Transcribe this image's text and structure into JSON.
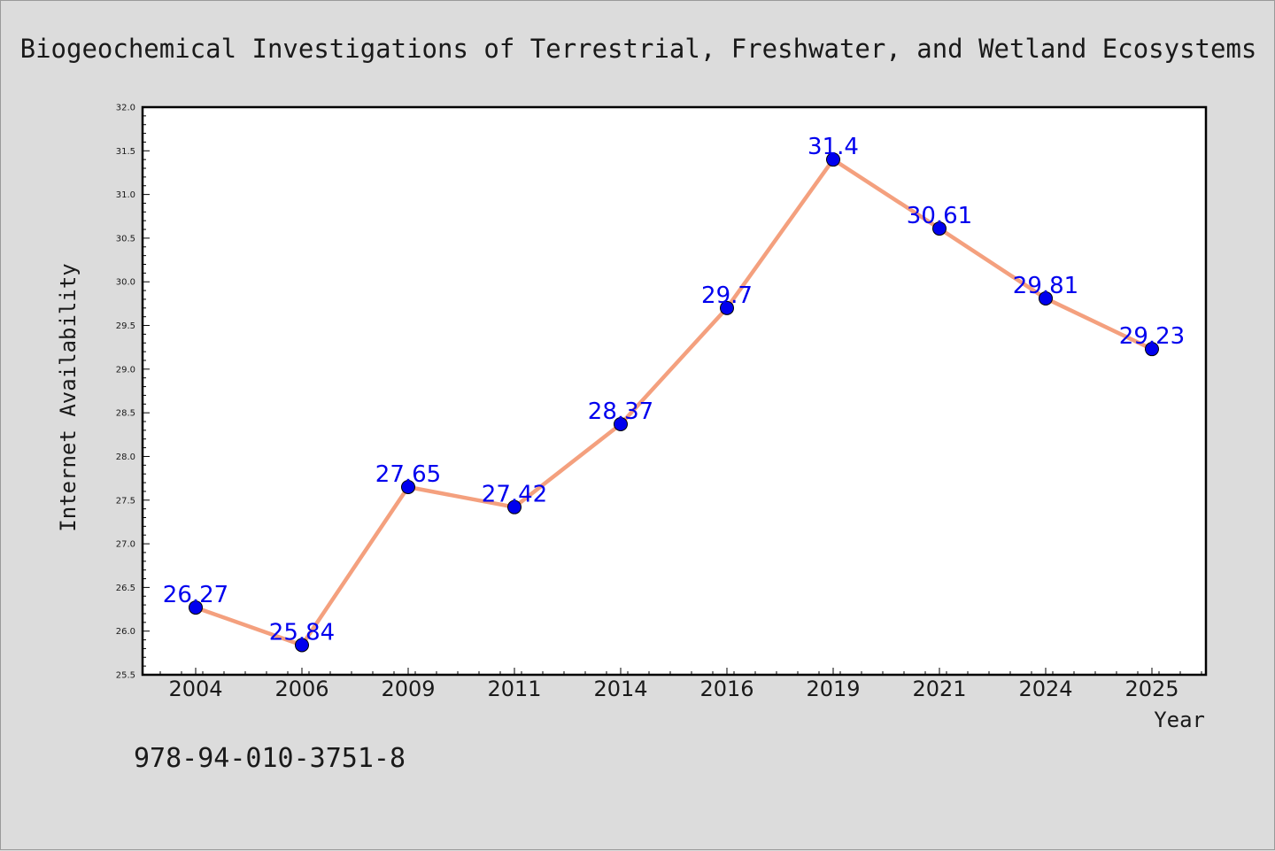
{
  "chart_data": {
    "type": "line",
    "title": "Biogeochemical Investigations of Terrestrial, Freshwater, and Wetland Ecosystems",
    "xlabel": "Year",
    "ylabel": "Internet Availability",
    "categories": [
      "2004",
      "2006",
      "2009",
      "2011",
      "2014",
      "2016",
      "2019",
      "2021",
      "2024",
      "2025"
    ],
    "series": [
      {
        "values": [
          26.27,
          25.84,
          27.65,
          27.42,
          28.37,
          29.7,
          31.4,
          30.61,
          29.81,
          29.23
        ],
        "data_labels": [
          "26.27",
          "25.84",
          "27.65",
          "27.42",
          "28.37",
          "29.7",
          "31.4",
          "30.61",
          "29.81",
          "29.23"
        ],
        "line_color": "#f4a07e",
        "marker_color": "#0000ee",
        "label_color": "#0000ee"
      }
    ],
    "ylim": [
      25.5,
      32.0
    ],
    "yticks": [
      "25.5",
      "26.0",
      "26.5",
      "27.0",
      "27.5",
      "28.0",
      "28.5",
      "29.0",
      "29.5",
      "30.0",
      "30.5",
      "31.0",
      "31.5",
      "32.0"
    ],
    "grid": false,
    "legend": "none"
  },
  "footer": {
    "code": "978-94-010-3751-8"
  }
}
